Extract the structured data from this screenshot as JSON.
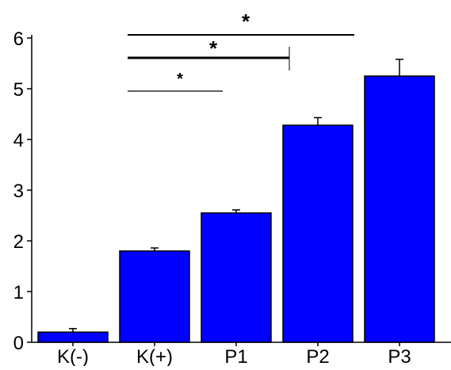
{
  "chart_data": {
    "type": "bar",
    "categories": [
      "K(-)",
      "K(+)",
      "P1",
      "P2",
      "P3"
    ],
    "values": [
      0.2,
      1.8,
      2.55,
      4.28,
      5.25
    ],
    "errors": [
      0.07,
      0.06,
      0.06,
      0.15,
      0.33
    ],
    "ylim": [
      0,
      6
    ],
    "yticks": [
      0,
      1,
      2,
      3,
      4,
      5,
      6
    ],
    "xlabel": "",
    "ylabel": "",
    "title": "",
    "grid": false,
    "bar_color": "#0000ff",
    "significance": [
      {
        "from": "K(+)",
        "to": "P1",
        "label": "*"
      },
      {
        "from": "K(+)",
        "to": "P2",
        "label": "*"
      },
      {
        "from": "K(+)",
        "to": "P3",
        "label": "*"
      }
    ]
  }
}
